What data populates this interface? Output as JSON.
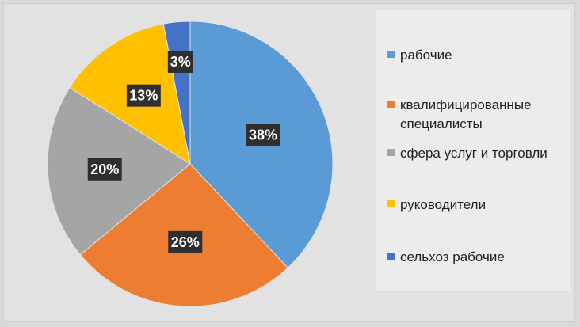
{
  "chart_data": {
    "type": "pie",
    "title": "",
    "series": [
      {
        "values": [
          38,
          26,
          20,
          13,
          3
        ],
        "labels": [
          "38%",
          "26%",
          "20%",
          "13%",
          "3%"
        ]
      }
    ],
    "categories": [
      "рабочие",
      "квалифицированные специалисты",
      "сфера услуг и торговли",
      "руководители",
      "сельхоз рабочие"
    ],
    "colors": [
      "#5b9bd5",
      "#ed7d31",
      "#a5a5a5",
      "#ffc000",
      "#4472c4"
    ],
    "start_angle_deg": 0,
    "direction": "clockwise",
    "legend_position": "right"
  }
}
